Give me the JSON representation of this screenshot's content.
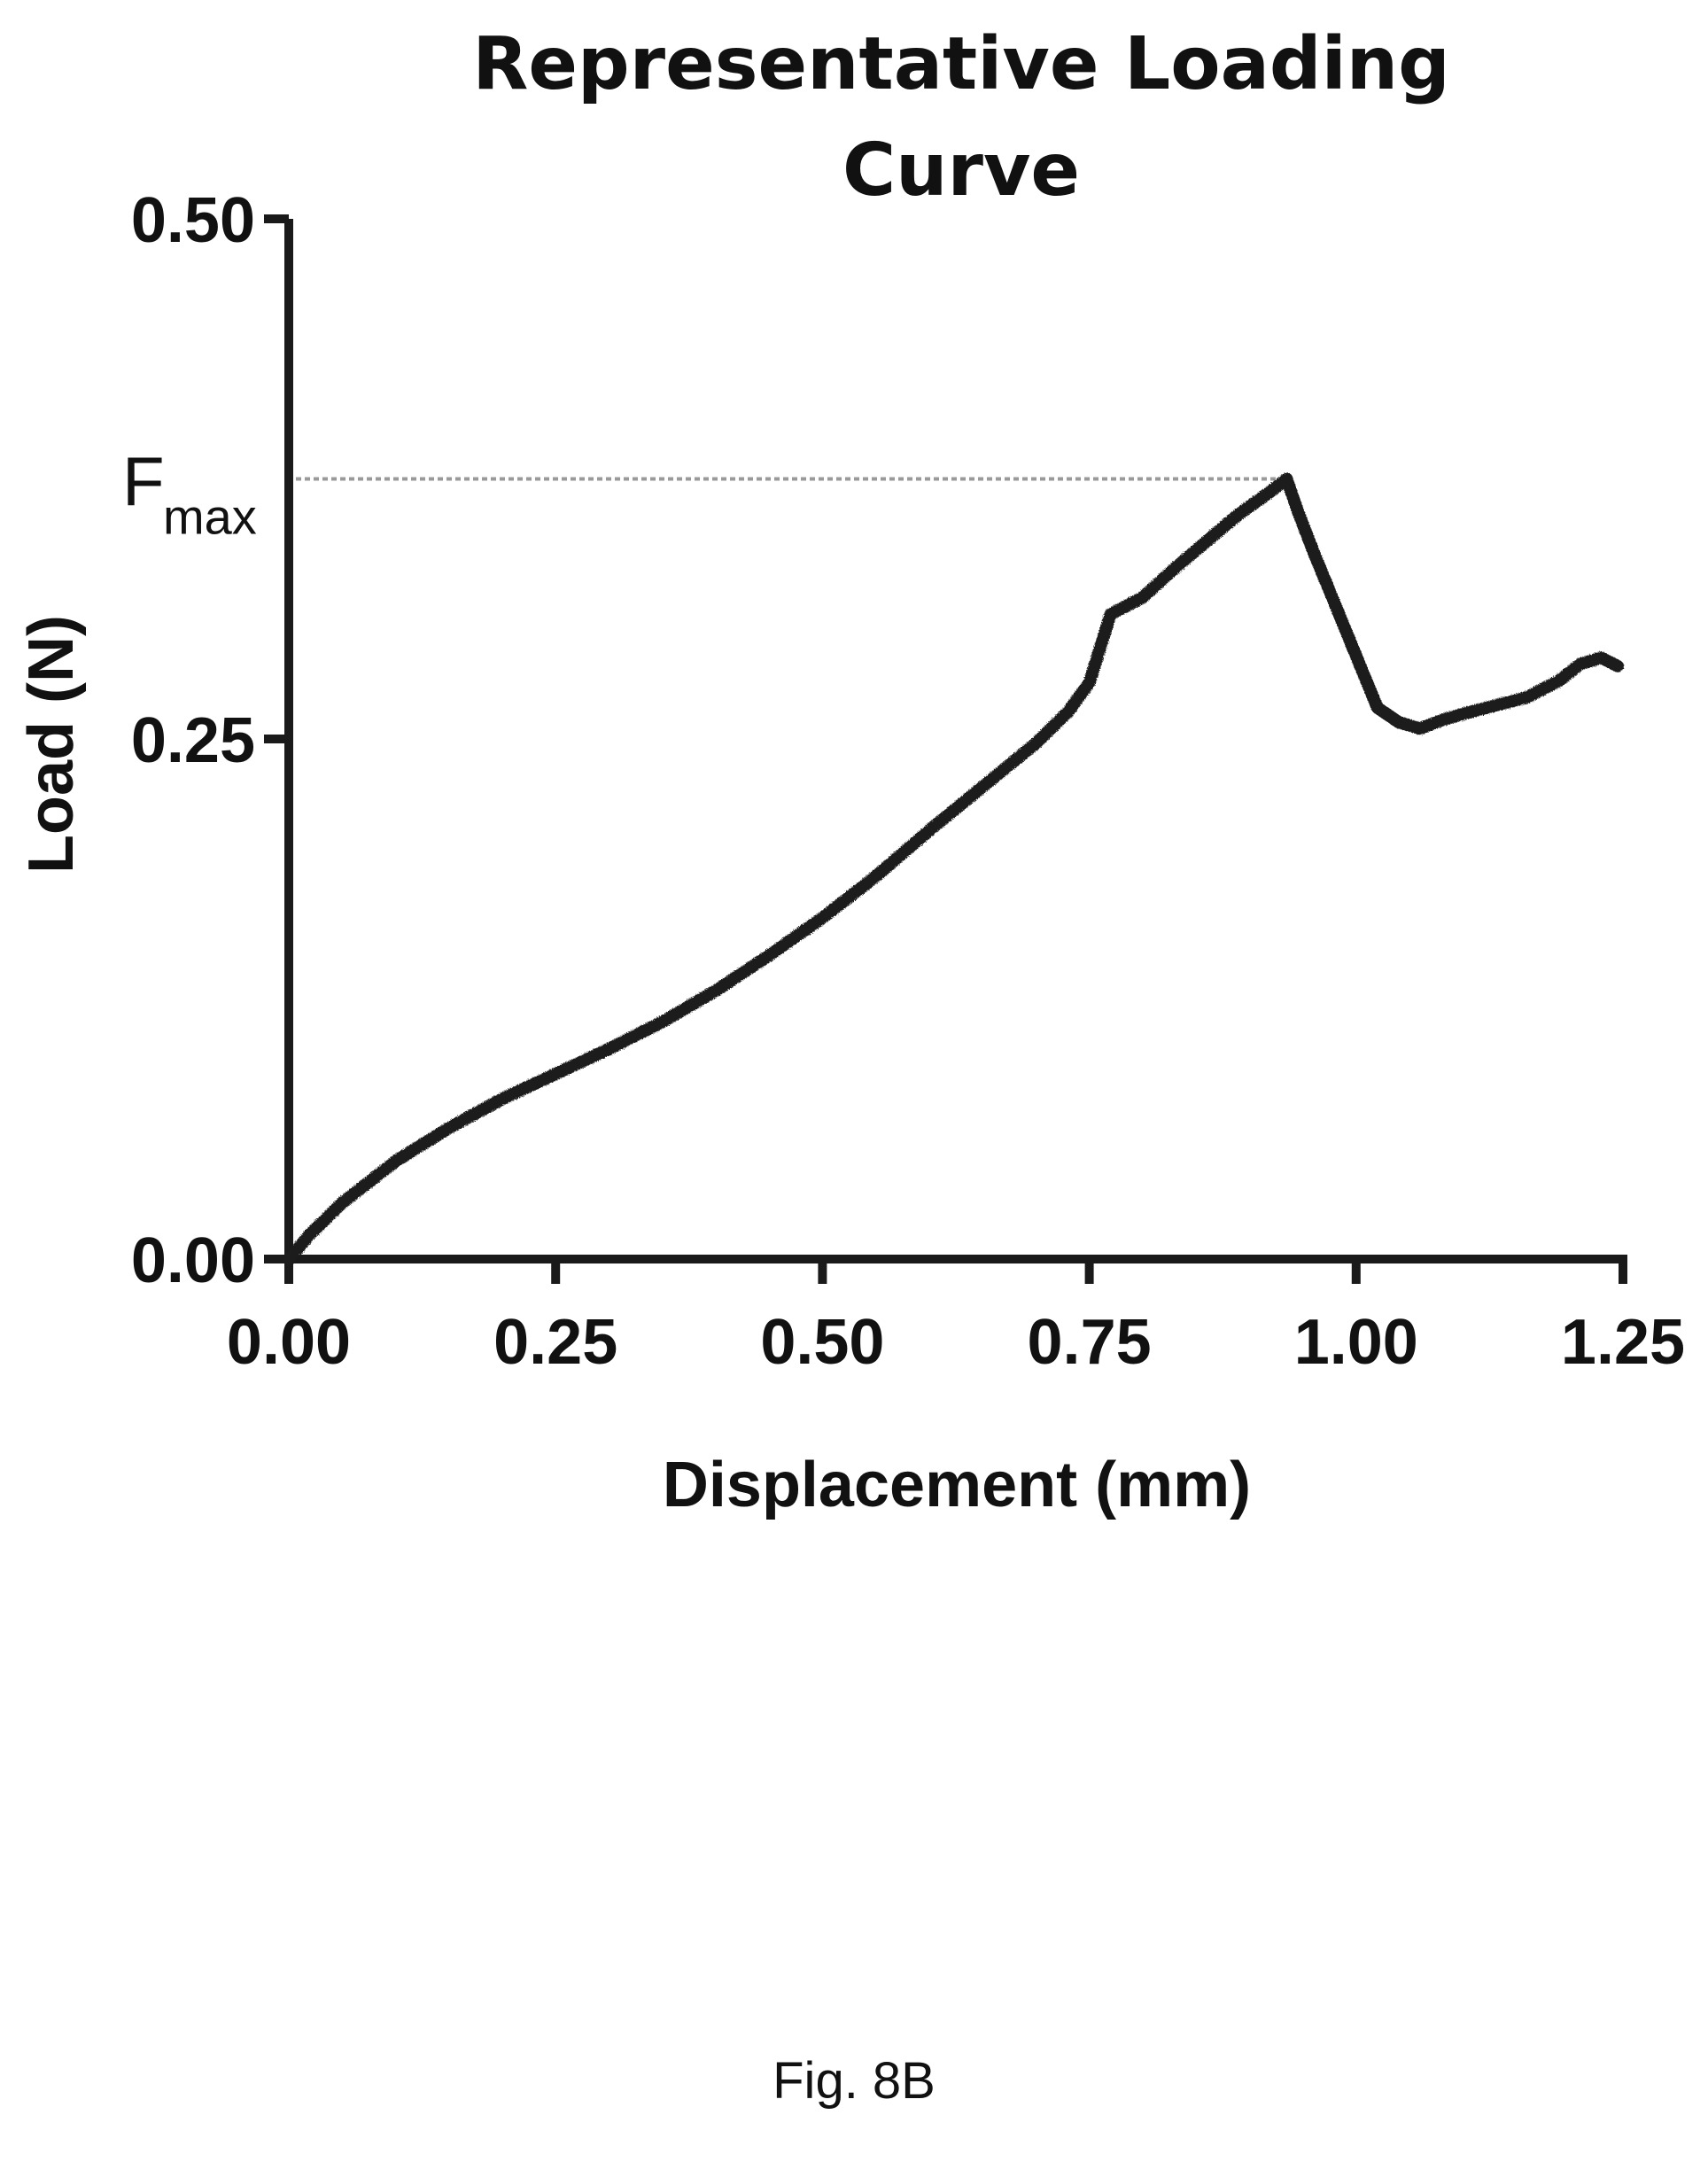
{
  "chart_data": {
    "type": "line",
    "title_line1": "Representative Loading",
    "title_line2": "Curve",
    "xlabel": "Displacement (mm)",
    "ylabel": "Load (N)",
    "xlim": [
      0,
      1.25
    ],
    "ylim": [
      0,
      0.5
    ],
    "x_ticks": [
      "0.00",
      "0.25",
      "0.50",
      "0.75",
      "1.00",
      "1.25"
    ],
    "y_ticks": [
      "0.00",
      "0.25",
      "0.50"
    ],
    "y_tick_values": [
      0,
      0.25,
      0.5
    ],
    "x_tick_values": [
      0,
      0.25,
      0.5,
      0.75,
      1.0,
      1.25
    ],
    "grid": false,
    "annotation": {
      "label_main": "F",
      "label_sub": "max",
      "y": 0.375,
      "x_end": 0.935,
      "style": "dotted horizontal reference line"
    },
    "series": [
      {
        "x": [
          0.0,
          0.02,
          0.05,
          0.1,
          0.15,
          0.2,
          0.25,
          0.3,
          0.35,
          0.4,
          0.45,
          0.5,
          0.55,
          0.6,
          0.65,
          0.7,
          0.73,
          0.75,
          0.77,
          0.8,
          0.83,
          0.86,
          0.89,
          0.92,
          0.935,
          0.945,
          0.96,
          0.98,
          1.0,
          1.02,
          1.04,
          1.06,
          1.08,
          1.1,
          1.13,
          1.16,
          1.19,
          1.21,
          1.23,
          1.245
        ],
        "y": [
          0.0,
          0.012,
          0.027,
          0.047,
          0.063,
          0.077,
          0.089,
          0.101,
          0.114,
          0.129,
          0.146,
          0.164,
          0.184,
          0.206,
          0.227,
          0.248,
          0.263,
          0.277,
          0.31,
          0.318,
          0.332,
          0.345,
          0.358,
          0.369,
          0.375,
          0.36,
          0.34,
          0.315,
          0.29,
          0.265,
          0.258,
          0.255,
          0.259,
          0.262,
          0.266,
          0.27,
          0.278,
          0.286,
          0.289,
          0.285
        ]
      }
    ]
  },
  "caption": "Fig. 8B"
}
